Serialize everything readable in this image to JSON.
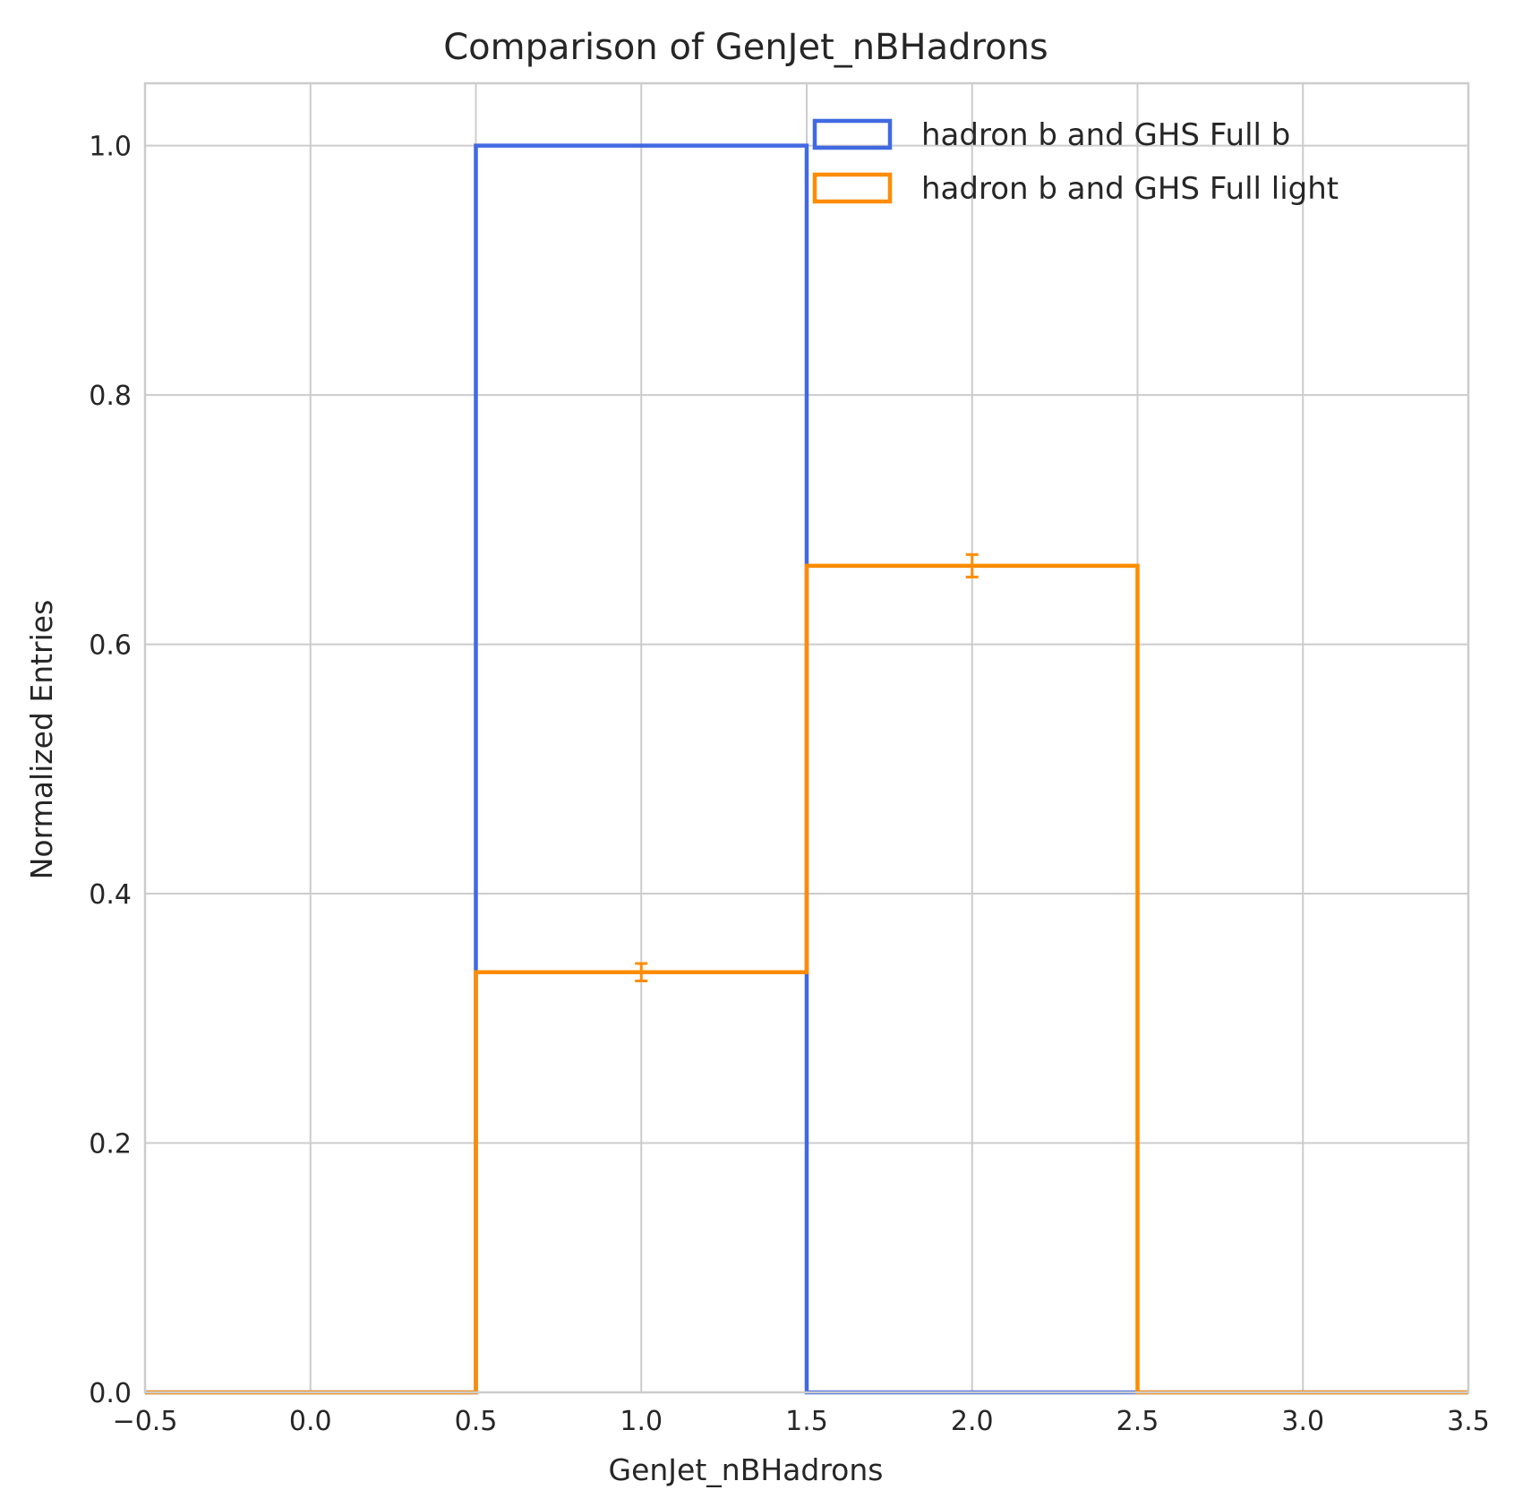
{
  "chart_data": {
    "type": "histogram",
    "title": "Comparison of GenJet_nBHadrons",
    "xlabel": "GenJet_nBHadrons",
    "ylabel": "Normalized Entries",
    "xlim": [
      -0.5,
      3.5
    ],
    "ylim": [
      0,
      1.05
    ],
    "xticks": [
      -0.5,
      0.0,
      0.5,
      1.0,
      1.5,
      2.0,
      2.5,
      3.0,
      3.5
    ],
    "xtick_labels": [
      "−0.5",
      "0.0",
      "0.5",
      "1.0",
      "1.5",
      "2.0",
      "2.5",
      "3.0",
      "3.5"
    ],
    "yticks": [
      0.0,
      0.2,
      0.4,
      0.6,
      0.8,
      1.0
    ],
    "ytick_labels": [
      "0.0",
      "0.2",
      "0.4",
      "0.6",
      "0.8",
      "1.0"
    ],
    "grid": true,
    "legend_position": "top-right",
    "bin_edges": [
      -0.5,
      0.5,
      1.5,
      2.5,
      3.5
    ],
    "series": [
      {
        "name": "hadron b and GHS Full b",
        "color": "#4169e1",
        "values": [
          0.0,
          1.0,
          0.0,
          0.0
        ],
        "errors": [
          0.0,
          0.0,
          0.0,
          0.0
        ]
      },
      {
        "name": "hadron b and GHS Full light",
        "color": "#ff8c00",
        "values": [
          0.0,
          0.337,
          0.663,
          0.0
        ],
        "errors": [
          0.0,
          0.007,
          0.009,
          0.0
        ]
      }
    ]
  }
}
